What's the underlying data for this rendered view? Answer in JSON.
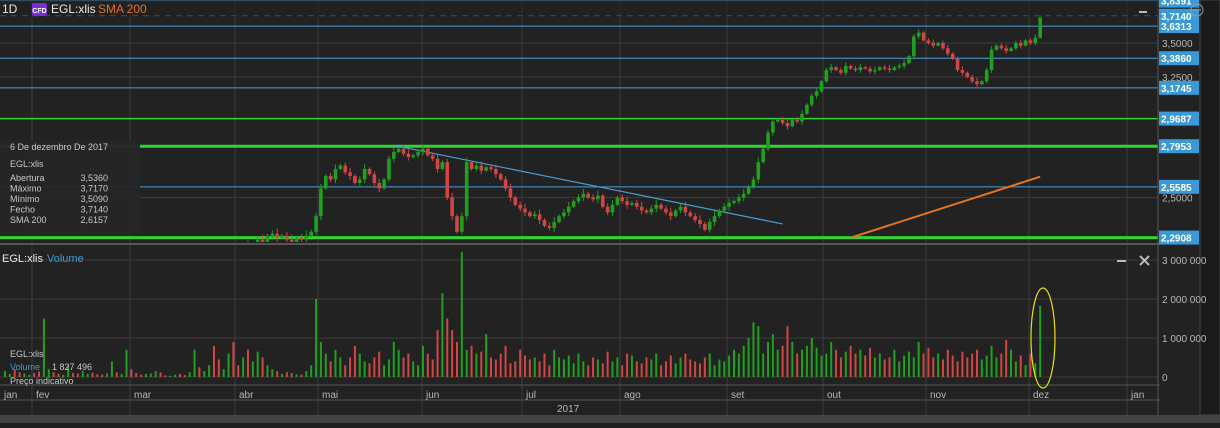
{
  "header": {
    "interval": "1D",
    "badge": "CFD",
    "symbol": "EGL:xlis",
    "indicator": "SMA 200"
  },
  "info_box": {
    "date": "6 De dezembro De 2017",
    "symbol": "EGL:xlis",
    "rows": [
      {
        "label": "Abertura",
        "value": "3,5360"
      },
      {
        "label": "Máximo",
        "value": "3,7170"
      },
      {
        "label": "Mínimo",
        "value": "3,5090"
      },
      {
        "label": "Fecho",
        "value": "3,7140"
      },
      {
        "label": "SMA 200",
        "value": "2,6157"
      }
    ]
  },
  "volume_panel": {
    "symbol": "EGL:xlis",
    "title": "Volume",
    "legend_symbol": "EGL:xlis",
    "legend_label": "Volume",
    "legend_value": "1 827 496",
    "footer": "Preço indicativo"
  },
  "colors": {
    "up": "#1fa01f",
    "down": "#d24545",
    "blue_level": "#4a9fd8",
    "green_level": "#2ed62e",
    "sma": "#e8731e",
    "label_bg": "#3a9ad9"
  },
  "chart_data": {
    "type": "candlestick",
    "price_axis": {
      "scale": "log",
      "ticks": [
        {
          "v": 3.5,
          "t": "3,5000"
        },
        {
          "v": 3.25,
          "t": "3,2500"
        },
        {
          "v": 2.5,
          "t": "2,5000"
        }
      ]
    },
    "levels": [
      {
        "v": 3.8391,
        "t": "3,8391",
        "color": "blue",
        "width": 1
      },
      {
        "v": 3.6313,
        "t": "3,6313",
        "color": "blue",
        "width": 1
      },
      {
        "v": 3.386,
        "t": "3,3860",
        "color": "blue",
        "width": 1
      },
      {
        "v": 3.1745,
        "t": "3,1745",
        "color": "blue",
        "width": 1
      },
      {
        "v": 2.9687,
        "t": "2,9687",
        "color": "green",
        "width": 1.5
      },
      {
        "v": 2.7953,
        "t": "2,7953",
        "color": "green",
        "width": 3
      },
      {
        "v": 2.5585,
        "t": "2,5585",
        "color": "blue",
        "width": 1
      },
      {
        "v": 2.2908,
        "t": "2,2908",
        "color": "green",
        "width": 3
      }
    ],
    "last_price": {
      "v": 3.714,
      "t": "3,7140"
    },
    "trendline": {
      "from": [
        80,
        2.8
      ],
      "to": [
        160,
        2.36
      ]
    },
    "sma200": {
      "from": [
        174,
        2.29
      ],
      "to": [
        213,
        2.6157
      ]
    },
    "closes": [
      2.12,
      2.14,
      2.1,
      2.08,
      2.11,
      2.15,
      2.13,
      2.12,
      2.16,
      2.18,
      2.15,
      2.14,
      2.17,
      2.19,
      2.16,
      2.15,
      2.18,
      2.2,
      2.17,
      2.16,
      2.14,
      2.15,
      2.18,
      2.17,
      2.19,
      2.21,
      2.18,
      2.16,
      2.15,
      2.17,
      2.19,
      2.2,
      2.18,
      2.17,
      2.19,
      2.21,
      2.2,
      2.18,
      2.19,
      2.22,
      2.2,
      2.21,
      2.23,
      2.22,
      2.2,
      2.21,
      2.24,
      2.23,
      2.22,
      2.25,
      2.24,
      2.26,
      2.28,
      2.27,
      2.3,
      2.31,
      2.29,
      2.3,
      2.28,
      2.27,
      2.29,
      2.28,
      2.3,
      2.32,
      2.4,
      2.55,
      2.62,
      2.6,
      2.66,
      2.68,
      2.64,
      2.62,
      2.58,
      2.6,
      2.66,
      2.63,
      2.58,
      2.55,
      2.6,
      2.72,
      2.76,
      2.78,
      2.75,
      2.73,
      2.74,
      2.76,
      2.78,
      2.74,
      2.72,
      2.66,
      2.7,
      2.5,
      2.4,
      2.32,
      2.4,
      2.7,
      2.66,
      2.68,
      2.65,
      2.67,
      2.66,
      2.63,
      2.6,
      2.55,
      2.5,
      2.46,
      2.44,
      2.42,
      2.4,
      2.41,
      2.38,
      2.35,
      2.34,
      2.37,
      2.4,
      2.42,
      2.45,
      2.48,
      2.5,
      2.52,
      2.5,
      2.49,
      2.51,
      2.45,
      2.42,
      2.46,
      2.5,
      2.48,
      2.46,
      2.47,
      2.45,
      2.43,
      2.42,
      2.44,
      2.46,
      2.44,
      2.42,
      2.4,
      2.43,
      2.45,
      2.42,
      2.4,
      2.38,
      2.36,
      2.33,
      2.37,
      2.4,
      2.43,
      2.45,
      2.47,
      2.48,
      2.5,
      2.52,
      2.56,
      2.6,
      2.7,
      2.78,
      2.88,
      2.95,
      2.96,
      2.94,
      2.92,
      2.96,
      2.95,
      3.0,
      3.06,
      3.12,
      3.15,
      3.22,
      3.3,
      3.32,
      3.3,
      3.28,
      3.33,
      3.31,
      3.3,
      3.32,
      3.31,
      3.29,
      3.3,
      3.32,
      3.31,
      3.3,
      3.32,
      3.33,
      3.35,
      3.4,
      3.55,
      3.58,
      3.52,
      3.5,
      3.48,
      3.5,
      3.46,
      3.42,
      3.38,
      3.3,
      3.28,
      3.25,
      3.22,
      3.2,
      3.22,
      3.3,
      3.45,
      3.48,
      3.46,
      3.44,
      3.46,
      3.5,
      3.48,
      3.52,
      3.5,
      3.54,
      3.714
    ],
    "volumes_thousands": [
      150,
      80,
      200,
      120,
      90,
      60,
      100,
      140,
      1500,
      200,
      120,
      80,
      60,
      300,
      100,
      90,
      150,
      80,
      110,
      70,
      60,
      90,
      400,
      120,
      80,
      700,
      200,
      100,
      60,
      80,
      90,
      150,
      120,
      40,
      30,
      60,
      80,
      50,
      120,
      700,
      250,
      150,
      300,
      800,
      450,
      200,
      600,
      900,
      300,
      500,
      700,
      400,
      650,
      500,
      300,
      200,
      150,
      80,
      120,
      100,
      70,
      60,
      150,
      300,
      2000,
      900,
      600,
      400,
      700,
      500,
      300,
      500,
      800,
      600,
      400,
      350,
      500,
      650,
      300,
      450,
      900,
      700,
      500,
      600,
      400,
      300,
      800,
      600,
      450,
      1200,
      2150,
      1500,
      1200,
      900,
      3200,
      700,
      800,
      600,
      650,
      1100,
      500,
      450,
      600,
      800,
      350,
      400,
      700,
      550,
      450,
      500,
      400,
      600,
      300,
      700,
      500,
      450,
      550,
      350,
      600,
      400,
      300,
      500,
      450,
      350,
      650,
      400,
      500,
      300,
      600,
      550,
      400,
      350,
      500,
      450,
      600,
      300,
      400,
      550,
      350,
      500,
      600,
      450,
      400,
      350,
      500,
      600,
      300,
      450,
      400,
      550,
      700,
      600,
      800,
      1000,
      1400,
      1300,
      600,
      900,
      1100,
      700,
      800,
      1300,
      900,
      600,
      700,
      800,
      1000,
      750,
      550,
      600,
      900,
      700,
      500,
      650,
      800,
      600,
      700,
      550,
      750,
      500,
      600,
      450,
      500,
      700,
      400,
      550,
      650,
      500,
      900,
      600,
      750,
      500,
      600,
      450,
      700,
      550,
      400,
      650,
      500,
      600,
      700,
      450,
      550,
      800,
      500,
      600,
      950,
      700,
      400,
      550,
      300,
      600,
      350,
      1827
    ],
    "volume_axis": {
      "ticks": [
        {
          "v": 3000000,
          "t": "3 000 000"
        },
        {
          "v": 2000000,
          "t": "2 000 000"
        },
        {
          "v": 1000000,
          "t": "1 000 000"
        },
        {
          "v": 0,
          "t": "0"
        }
      ]
    },
    "months": [
      "jan",
      "fev",
      "mar",
      "abr",
      "mai",
      "jun",
      "jul",
      "ago",
      "set",
      "out",
      "nov",
      "dez",
      "jan"
    ],
    "year": "2017"
  }
}
